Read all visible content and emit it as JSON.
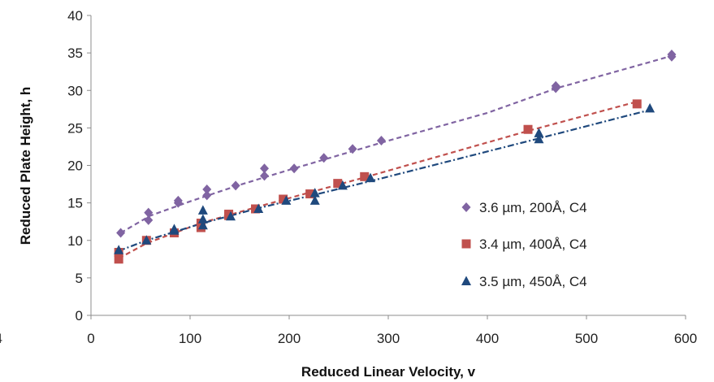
{
  "chart_data": {
    "type": "scatter",
    "title": "",
    "xlabel": "Reduced Linear Velocity, v",
    "ylabel": "Reduced Plate Height, h",
    "xlim": [
      0,
      600
    ],
    "ylim": [
      0,
      40
    ],
    "xticks": [
      "0",
      "100",
      "200",
      "300",
      "400",
      "500",
      "600"
    ],
    "yticks": [
      "0",
      "5",
      "10",
      "15",
      "20",
      "25",
      "30",
      "35",
      "40"
    ],
    "clipped_left_label": "4",
    "grid": false,
    "legend_position": "right",
    "series": [
      {
        "name": "3.6 µm, 200Å, C4",
        "marker": "diamond",
        "color": "#8064A2",
        "line_style": "dashed",
        "points": [
          [
            30,
            11.0
          ],
          [
            58,
            12.7
          ],
          [
            58,
            13.7
          ],
          [
            88,
            15.0
          ],
          [
            88,
            15.3
          ],
          [
            117,
            16.0
          ],
          [
            117,
            16.8
          ],
          [
            146,
            17.3
          ],
          [
            175,
            18.6
          ],
          [
            175,
            19.6
          ],
          [
            205,
            19.6
          ],
          [
            235,
            21.0
          ],
          [
            264,
            22.2
          ],
          [
            293,
            23.3
          ],
          [
            469,
            30.3
          ],
          [
            469,
            30.6
          ],
          [
            586,
            34.5
          ],
          [
            586,
            34.8
          ]
        ],
        "trend": [
          [
            30,
            11.0
          ],
          [
            60,
            13.3
          ],
          [
            100,
            15.2
          ],
          [
            150,
            17.4
          ],
          [
            200,
            19.4
          ],
          [
            300,
            23.3
          ],
          [
            400,
            27.0
          ],
          [
            470,
            30.3
          ],
          [
            586,
            34.6
          ]
        ]
      },
      {
        "name": "3.4 µm, 400Å, C4",
        "marker": "square",
        "color": "#C0504D",
        "line_style": "dashed",
        "points": [
          [
            28,
            7.5
          ],
          [
            28,
            8.4
          ],
          [
            56,
            10.0
          ],
          [
            84,
            11.0
          ],
          [
            111,
            11.7
          ],
          [
            111,
            12.3
          ],
          [
            139,
            13.3
          ],
          [
            139,
            13.5
          ],
          [
            166,
            14.2
          ],
          [
            194,
            15.5
          ],
          [
            221,
            16.2
          ],
          [
            249,
            17.6
          ],
          [
            276,
            18.5
          ],
          [
            441,
            24.8
          ],
          [
            551,
            28.2
          ]
        ],
        "trend": [
          [
            28,
            7.6
          ],
          [
            56,
            9.6
          ],
          [
            111,
            12.3
          ],
          [
            166,
            14.4
          ],
          [
            221,
            16.4
          ],
          [
            276,
            18.4
          ],
          [
            441,
            24.6
          ],
          [
            551,
            28.5
          ]
        ]
      },
      {
        "name": "3.5 µm, 450Å, C4",
        "marker": "triangle",
        "color": "#1F497D",
        "line_style": "dash-dot",
        "points": [
          [
            28,
            8.7
          ],
          [
            56,
            10.0
          ],
          [
            84,
            11.3
          ],
          [
            84,
            11.5
          ],
          [
            113,
            12.0
          ],
          [
            113,
            12.8
          ],
          [
            113,
            14.0
          ],
          [
            141,
            13.2
          ],
          [
            169,
            14.2
          ],
          [
            197,
            15.3
          ],
          [
            226,
            15.3
          ],
          [
            226,
            16.3
          ],
          [
            254,
            17.3
          ],
          [
            282,
            18.3
          ],
          [
            452,
            23.5
          ],
          [
            452,
            24.3
          ],
          [
            564,
            27.6
          ]
        ],
        "trend": [
          [
            28,
            8.6
          ],
          [
            56,
            10.0
          ],
          [
            113,
            12.3
          ],
          [
            169,
            14.3
          ],
          [
            226,
            16.1
          ],
          [
            282,
            17.9
          ],
          [
            452,
            23.6
          ],
          [
            564,
            27.4
          ]
        ]
      }
    ]
  }
}
